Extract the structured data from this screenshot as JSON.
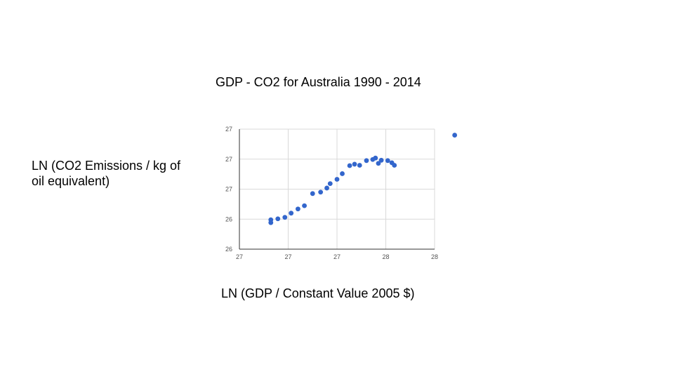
{
  "chart_data": {
    "type": "scatter",
    "title": "GDP - CO2 for Australia 1990 - 2014",
    "xlabel": "LN (GDP / Constant Value 2005 $)",
    "ylabel": "LN (CO2 Emissions / kg of oil equivalent)",
    "xlim": [
      26.9,
      27.9
    ],
    "ylim": [
      25.8,
      26.8
    ],
    "x_ticks": [
      26.9,
      27.15,
      27.4,
      27.65,
      27.9
    ],
    "x_tick_labels": [
      "27",
      "27",
      "27",
      "28",
      "28"
    ],
    "y_ticks": [
      25.8,
      26.05,
      26.3,
      26.55,
      26.8
    ],
    "y_tick_labels": [
      "26",
      "26",
      "27",
      "27",
      "27"
    ],
    "grid": true,
    "legend": "none",
    "marker_color": "#3366cc",
    "series": [
      {
        "points": [
          [
            27.061,
            26.045
          ],
          [
            27.061,
            26.021
          ],
          [
            27.097,
            26.053
          ],
          [
            27.133,
            26.065
          ],
          [
            27.165,
            26.1
          ],
          [
            27.2,
            26.135
          ],
          [
            27.233,
            26.162
          ],
          [
            27.275,
            26.263
          ],
          [
            27.316,
            26.275
          ],
          [
            27.348,
            26.309
          ],
          [
            27.365,
            26.346
          ],
          [
            27.4,
            26.382
          ],
          [
            27.427,
            26.429
          ],
          [
            27.465,
            26.496
          ],
          [
            27.49,
            26.508
          ],
          [
            27.516,
            26.499
          ],
          [
            27.551,
            26.538
          ],
          [
            27.583,
            26.547
          ],
          [
            27.597,
            26.559
          ],
          [
            27.612,
            26.515
          ],
          [
            27.627,
            26.541
          ],
          [
            27.66,
            26.538
          ],
          [
            27.681,
            26.52
          ],
          [
            27.694,
            26.499
          ],
          [
            28.003,
            26.75
          ]
        ]
      }
    ]
  }
}
